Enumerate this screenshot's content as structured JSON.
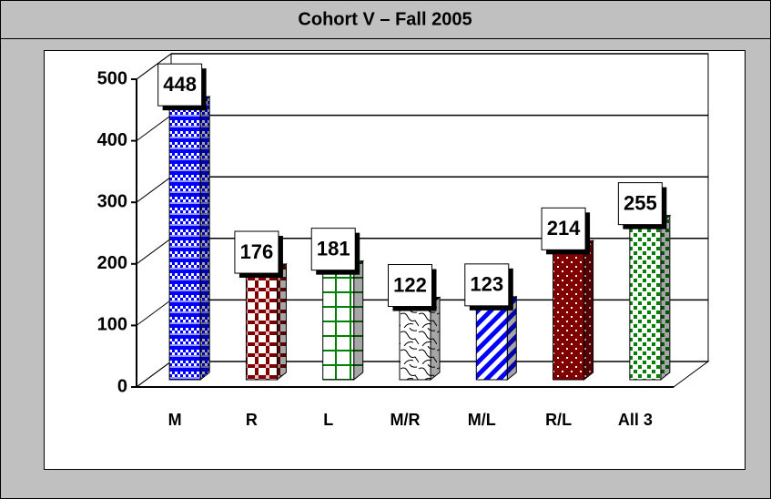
{
  "chart_data": {
    "type": "bar",
    "title": "Cohort V – Fall 2005",
    "categories": [
      "M",
      "R",
      "L",
      "M/R",
      "M/L",
      "R/L",
      "All 3"
    ],
    "values": [
      448,
      176,
      181,
      122,
      123,
      214,
      255
    ],
    "colors": [
      "#0000ff",
      "#800000",
      "#008000",
      "#000000",
      "#0000ff",
      "#800000",
      "#008000"
    ],
    "ylim": [
      0,
      500
    ],
    "yticks": [
      0,
      100,
      200,
      300,
      400,
      500
    ],
    "grid": true
  }
}
